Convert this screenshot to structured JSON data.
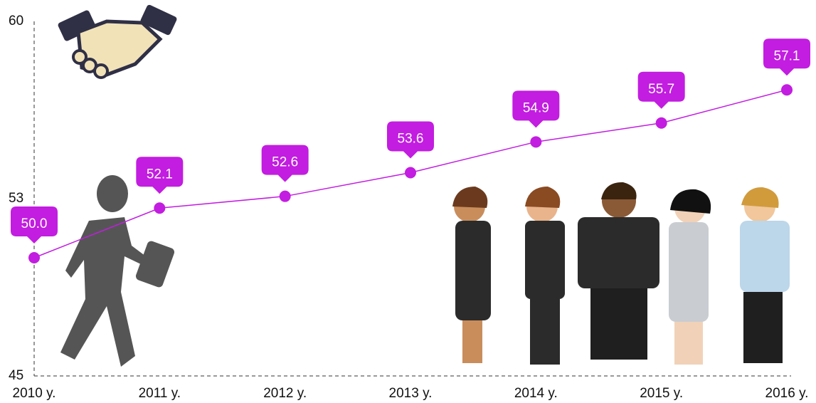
{
  "chart_data": {
    "type": "line",
    "categories": [
      "2010 y.",
      "2011 y.",
      "2012 y.",
      "2013 y.",
      "2014 y.",
      "2015 y.",
      "2016 y."
    ],
    "values": [
      50.0,
      52.1,
      52.6,
      53.6,
      54.9,
      55.7,
      57.1
    ],
    "value_labels": [
      "50.0",
      "52.1",
      "52.6",
      "53.6",
      "54.9",
      "55.7",
      "57.1"
    ],
    "color": "#c21de0",
    "ylim": [
      45,
      60
    ],
    "yticks": [
      45,
      {
        "value": 52.5,
        "label": "53"
      },
      60
    ]
  }
}
